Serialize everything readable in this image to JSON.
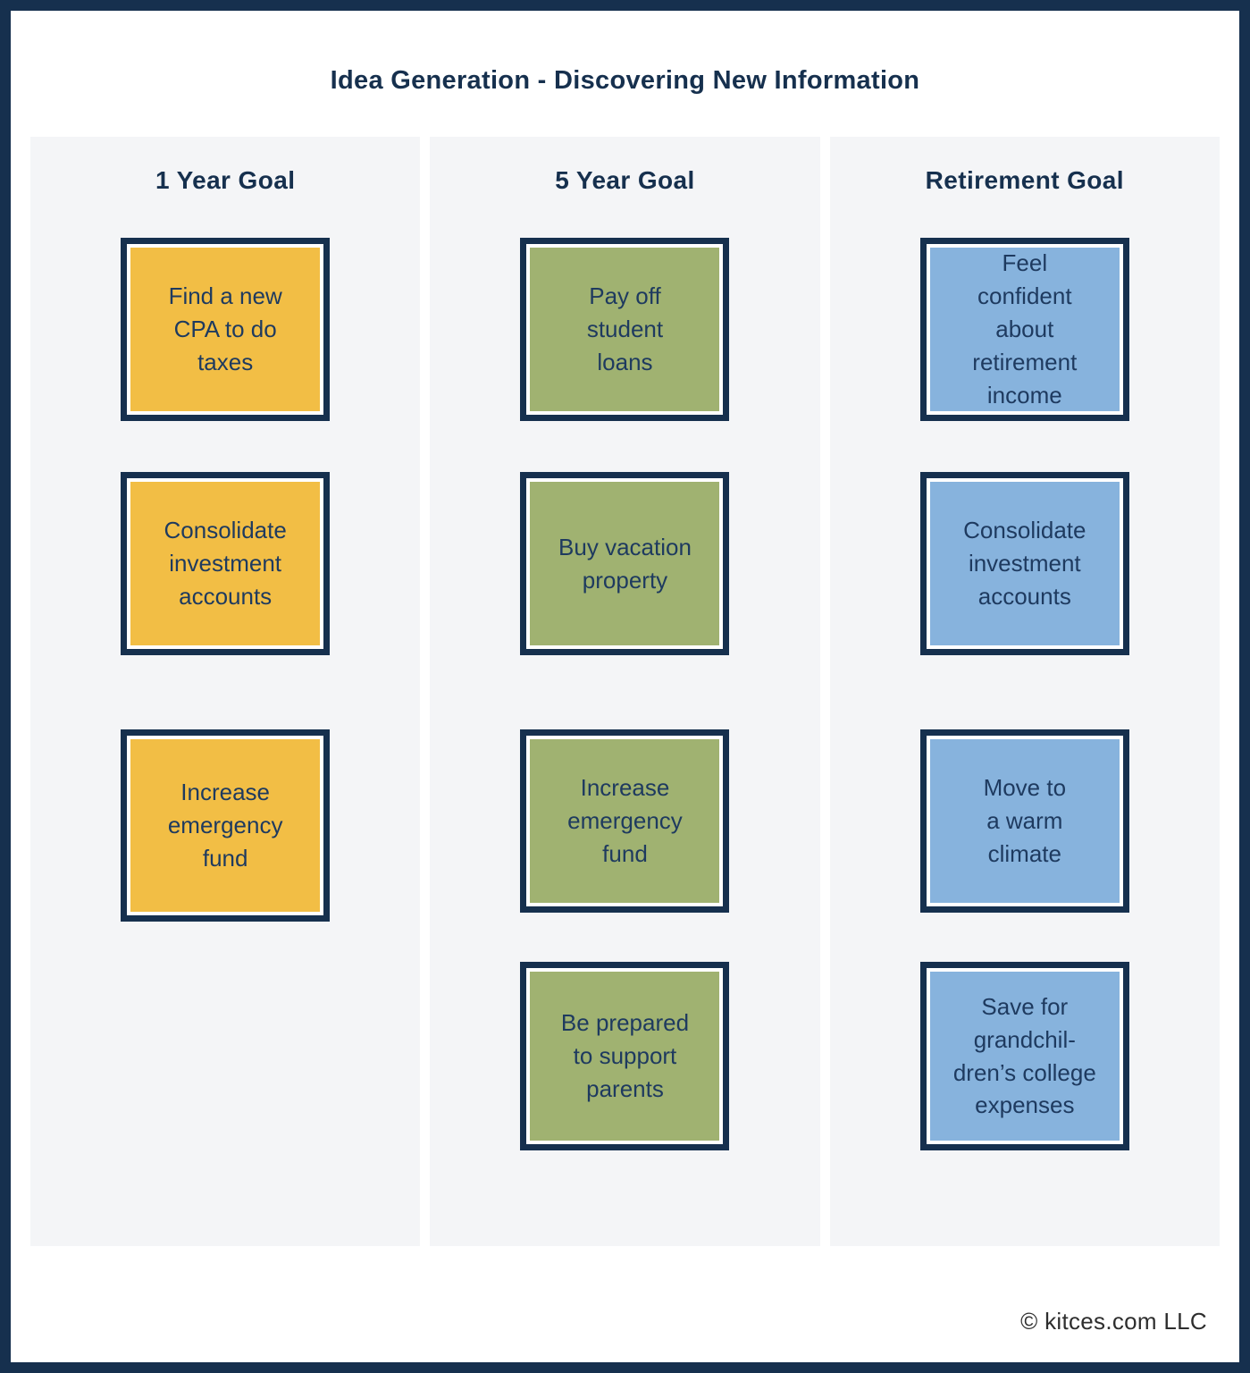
{
  "title": "Idea Generation - Discovering New Information",
  "colors": {
    "navy": "#16304E",
    "yellow": "#F2BE45",
    "green": "#A0B271",
    "blue": "#87B3DD",
    "column_bg": "#F4F5F7",
    "text_navy": "#1E3A5F",
    "footer_text": "#2E2E2E"
  },
  "columns": [
    {
      "header": "1 Year Goal",
      "color_name": "yellow",
      "boxes": [
        {
          "label": "Find a new\nCPA to do\ntaxes"
        },
        {
          "label": "Consolidate\ninvestment\naccounts"
        },
        {
          "label": "Increase\nemergency\nfund"
        }
      ]
    },
    {
      "header": "5 Year Goal",
      "color_name": "green",
      "boxes": [
        {
          "label": "Pay off\nstudent\nloans"
        },
        {
          "label": "Buy vacation\nproperty"
        },
        {
          "label": "Increase\nemergency\nfund"
        },
        {
          "label": "Be prepared\nto support\nparents"
        }
      ]
    },
    {
      "header": "Retirement Goal",
      "color_name": "blue",
      "boxes": [
        {
          "label": "Feel\nconfident\nabout\nretirement\nincome"
        },
        {
          "label": "Consolidate\ninvestment\naccounts"
        },
        {
          "label": "Move to\na warm\nclimate"
        },
        {
          "label": "Save for\ngrandchil-\ndren’s college\nexpenses"
        }
      ]
    }
  ],
  "footer": {
    "copyright": "© kitces.com LLC"
  }
}
